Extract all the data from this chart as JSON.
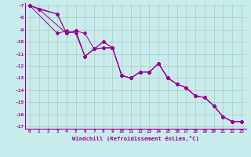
{
  "xlabel": "Windchill (Refroidissement éolien,°C)",
  "background_color": "#c8ecec",
  "grid_color": "#b0c8c8",
  "line_color": "#990099",
  "xlim": [
    -0.5,
    23.5
  ],
  "ylim": [
    -17.2,
    -6.8
  ],
  "xticks": [
    0,
    1,
    2,
    3,
    4,
    5,
    6,
    7,
    8,
    9,
    10,
    11,
    12,
    13,
    14,
    15,
    16,
    17,
    18,
    19,
    20,
    21,
    22,
    23
  ],
  "yticks": [
    -17,
    -16,
    -15,
    -14,
    -13,
    -12,
    -11,
    -10,
    -9,
    -8,
    -7
  ],
  "lines": [
    [
      [
        0,
        -7.0
      ],
      [
        1,
        -7.3
      ],
      [
        3,
        -7.7
      ],
      [
        4,
        -9.3
      ],
      [
        5,
        -9.1
      ],
      [
        6,
        -11.2
      ],
      [
        7,
        -10.6
      ],
      [
        8,
        -10.0
      ],
      [
        9,
        -10.5
      ],
      [
        10,
        -12.8
      ],
      [
        11,
        -13.0
      ],
      [
        12,
        -12.5
      ],
      [
        13,
        -12.5
      ],
      [
        14,
        -11.8
      ],
      [
        15,
        -13.0
      ],
      [
        16,
        -13.5
      ],
      [
        17,
        -13.8
      ],
      [
        18,
        -14.5
      ],
      [
        19,
        -14.6
      ],
      [
        20,
        -15.3
      ],
      [
        21,
        -16.2
      ],
      [
        22,
        -16.6
      ],
      [
        23,
        -16.6
      ]
    ],
    [
      [
        0,
        -7.0
      ],
      [
        3,
        -9.3
      ],
      [
        4,
        -9.1
      ],
      [
        5,
        -9.3
      ],
      [
        6,
        -11.2
      ],
      [
        7,
        -10.6
      ],
      [
        8,
        -10.5
      ],
      [
        9,
        -10.5
      ],
      [
        10,
        -12.8
      ],
      [
        11,
        -13.0
      ],
      [
        12,
        -12.5
      ],
      [
        13,
        -12.5
      ],
      [
        14,
        -11.8
      ],
      [
        15,
        -13.0
      ],
      [
        16,
        -13.5
      ],
      [
        17,
        -13.8
      ],
      [
        18,
        -14.5
      ],
      [
        19,
        -14.6
      ],
      [
        20,
        -15.3
      ],
      [
        21,
        -16.2
      ],
      [
        22,
        -16.6
      ],
      [
        23,
        -16.6
      ]
    ],
    [
      [
        0,
        -7.0
      ],
      [
        1,
        -7.3
      ],
      [
        4,
        -9.3
      ],
      [
        5,
        -9.1
      ],
      [
        6,
        -9.3
      ],
      [
        7,
        -10.6
      ],
      [
        8,
        -10.0
      ],
      [
        9,
        -10.5
      ],
      [
        10,
        -12.8
      ],
      [
        11,
        -13.0
      ],
      [
        12,
        -12.5
      ],
      [
        13,
        -12.5
      ],
      [
        14,
        -11.8
      ],
      [
        15,
        -13.0
      ],
      [
        16,
        -13.5
      ],
      [
        17,
        -13.8
      ],
      [
        18,
        -14.5
      ],
      [
        19,
        -14.6
      ],
      [
        20,
        -15.3
      ],
      [
        21,
        -16.2
      ],
      [
        22,
        -16.6
      ],
      [
        23,
        -16.6
      ]
    ],
    [
      [
        0,
        -7.0
      ],
      [
        3,
        -7.7
      ],
      [
        4,
        -9.3
      ],
      [
        5,
        -9.1
      ],
      [
        6,
        -11.2
      ],
      [
        7,
        -10.6
      ],
      [
        8,
        -10.5
      ],
      [
        9,
        -10.5
      ],
      [
        10,
        -12.8
      ],
      [
        11,
        -13.0
      ],
      [
        12,
        -12.5
      ],
      [
        13,
        -12.5
      ],
      [
        14,
        -11.8
      ],
      [
        15,
        -13.0
      ],
      [
        16,
        -13.5
      ],
      [
        17,
        -13.8
      ],
      [
        18,
        -14.5
      ],
      [
        19,
        -14.6
      ],
      [
        20,
        -15.3
      ],
      [
        21,
        -16.2
      ],
      [
        22,
        -16.6
      ],
      [
        23,
        -16.6
      ]
    ]
  ]
}
